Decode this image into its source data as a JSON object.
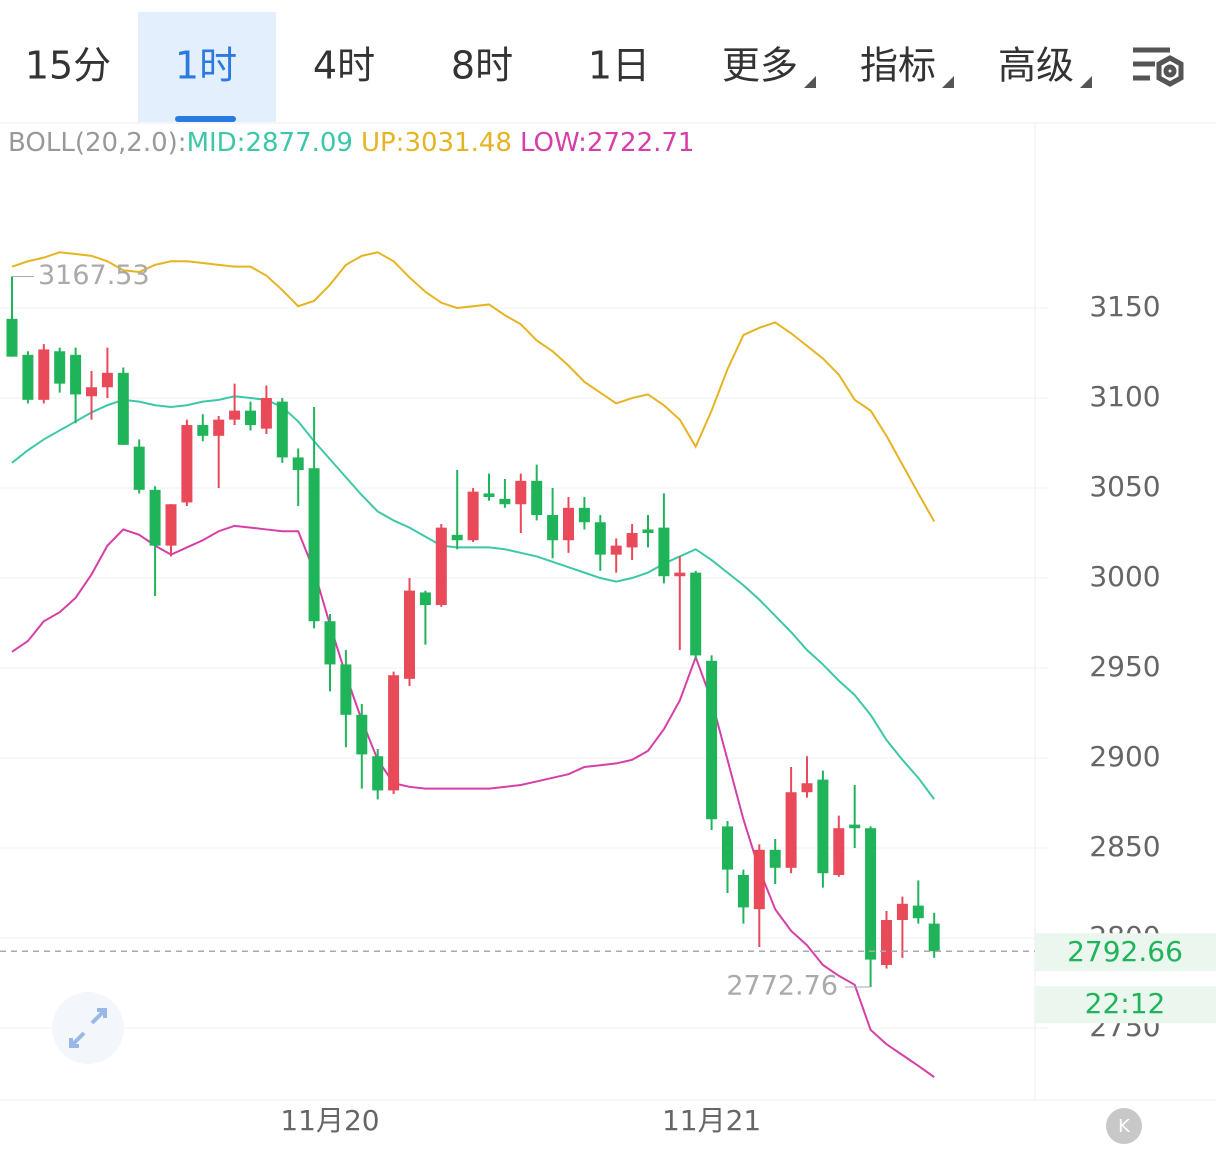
{
  "tabs": [
    "15分",
    "1时",
    "4时",
    "8时",
    "1日",
    "更多",
    "指标",
    "高级"
  ],
  "selected_tab": 1,
  "chart_data": {
    "type": "candlestick",
    "legend": [
      "BOLL(20,2.0):",
      "MID:2877.09",
      "UP:3031.48",
      "LOW:2722.71"
    ],
    "categories": [
      null,
      null,
      null,
      null,
      null,
      null,
      null,
      null,
      null,
      null,
      null,
      null,
      null,
      null,
      null,
      null,
      null,
      null,
      null,
      null,
      "11月20",
      null,
      null,
      null,
      null,
      null,
      null,
      null,
      null,
      null,
      null,
      null,
      null,
      null,
      null,
      null,
      null,
      null,
      null,
      null,
      null,
      null,
      null,
      null,
      "11月21",
      null,
      null,
      null,
      null,
      null,
      null,
      null,
      null,
      null,
      null,
      null,
      null,
      null,
      null
    ],
    "open": [
      3144,
      3124,
      3099,
      3126,
      3124,
      3101,
      3106,
      3114,
      3073,
      3049,
      3018,
      3042,
      3085,
      3079,
      3088,
      3093,
      3083,
      3098,
      3067,
      3061,
      2976,
      2952,
      2924,
      2901,
      2882,
      2944,
      2992,
      2985,
      3024,
      3021,
      3047,
      3044,
      3041,
      3054,
      3035,
      3021,
      3039,
      3031,
      3013,
      3017,
      3027,
      3028,
      3001,
      3003,
      2954,
      2862,
      2835,
      2816,
      2849,
      2839,
      2881,
      2888,
      2835,
      2863,
      2861,
      2785,
      2810,
      2818,
      2808
    ],
    "close": [
      3123,
      3099,
      3127,
      3108,
      3102,
      3106,
      3114,
      3074,
      3049,
      3018,
      3041,
      3085,
      3079,
      3088,
      3093,
      3085,
      3100,
      3067,
      3060,
      2976,
      2952,
      2924,
      2902,
      2882,
      2946,
      2993,
      2985,
      3028,
      3021,
      3048,
      3045,
      3041,
      3054,
      3035,
      3021,
      3039,
      3031,
      3013,
      3018,
      3025,
      3025,
      3001,
      3003,
      2957,
      2866,
      2838,
      2817,
      2849,
      2839,
      2881,
      2886,
      2836,
      2861,
      2861,
      2788,
      2810,
      2819,
      2811,
      2792.66
    ],
    "high": [
      3167.53,
      3126,
      3130,
      3128,
      3128,
      3115,
      3128,
      3117,
      3077,
      3051,
      3041,
      3088,
      3091,
      3090,
      3108,
      3098,
      3107,
      3100,
      3072,
      3095,
      2980,
      2960,
      2930,
      2905,
      2948,
      3000,
      2993,
      3030,
      3060,
      3050,
      3058,
      3055,
      3058,
      3063,
      3050,
      3045,
      3045,
      3035,
      3022,
      3030,
      3035,
      3047,
      3012,
      3004,
      2957,
      2865,
      2838,
      2852,
      2855,
      2895,
      2901,
      2893,
      2868,
      2885,
      2862,
      2815,
      2823,
      2832,
      2814
    ],
    "low": [
      3123,
      3097,
      3097,
      3103,
      3086,
      3088,
      3100,
      3074,
      3047,
      2990,
      3012,
      3040,
      3076,
      3050,
      3085,
      3082,
      3080,
      3064,
      3040,
      2972,
      2937,
      2906,
      2883,
      2877,
      2880,
      2940,
      2963,
      2984,
      3016,
      3020,
      3043,
      3039,
      3025,
      3032,
      3011,
      3014,
      3027,
      3004,
      3003,
      3010,
      3017,
      2997,
      2960,
      2955,
      2860,
      2825,
      2808,
      2795,
      2830,
      2836,
      2878,
      2828,
      2834,
      2850,
      2772.76,
      2783,
      2789,
      2808,
      2789
    ],
    "up_color": "#e84a5a",
    "down_color": "#1fb45a",
    "series": [
      {
        "color": "#3cc8a8",
        "values": [
          3064,
          3071,
          3077,
          3082,
          3087,
          3092,
          3096,
          3099,
          3098,
          3096,
          3095,
          3096,
          3098,
          3099,
          3101,
          3100,
          3099,
          3095,
          3087,
          3076,
          3066,
          3056,
          3046,
          3037,
          3032,
          3028,
          3023,
          3018,
          3017,
          3017,
          3017,
          3016,
          3014,
          3012,
          3009,
          3006,
          3003,
          3000,
          2998,
          3000,
          3003,
          3008,
          3012,
          3016,
          3010,
          3003,
          2996,
          2988,
          2979,
          2970,
          2960,
          2952,
          2943,
          2935,
          2924,
          2910,
          2899,
          2889,
          2877.09
        ]
      },
      {
        "color": "#e6b422",
        "values": [
          3173,
          3176,
          3178,
          3181,
          3180,
          3179,
          3176,
          3171,
          3170,
          3174,
          3176,
          3176,
          3175,
          3174,
          3173,
          3173,
          3168,
          3160,
          3151,
          3154,
          3163,
          3174,
          3179,
          3181,
          3176,
          3167,
          3159,
          3153,
          3150,
          3151,
          3152,
          3146,
          3141,
          3132,
          3126,
          3118,
          3109,
          3103,
          3097,
          3100,
          3102,
          3096,
          3088,
          3073,
          3093,
          3116,
          3135,
          3139,
          3142,
          3136,
          3129,
          3122,
          3113,
          3099,
          3093,
          3079,
          3063,
          3047,
          3031.48
        ]
      },
      {
        "color": "#d63fa8",
        "values": [
          2959,
          2965,
          2976,
          2981,
          2989,
          3002,
          3018,
          3027,
          3024,
          3018,
          3013,
          3017,
          3021,
          3026,
          3029,
          3028,
          3027,
          3026,
          3026,
          3004,
          2974,
          2946,
          2921,
          2899,
          2886,
          2884,
          2883,
          2883,
          2883,
          2883,
          2883,
          2884,
          2885,
          2887,
          2889,
          2891,
          2895,
          2896,
          2897,
          2899,
          2904,
          2916,
          2932,
          2956,
          2932,
          2899,
          2866,
          2838,
          2816,
          2804,
          2796,
          2785,
          2779,
          2774,
          2749,
          2741,
          2735,
          2729,
          2722.71
        ]
      }
    ],
    "ylim": [
      2710,
      3251.7
    ],
    "yticks": [
      2750,
      2800,
      2850,
      2900,
      2950,
      3000,
      3050,
      3100,
      3150
    ],
    "grid": true,
    "countdown": "22:12"
  }
}
